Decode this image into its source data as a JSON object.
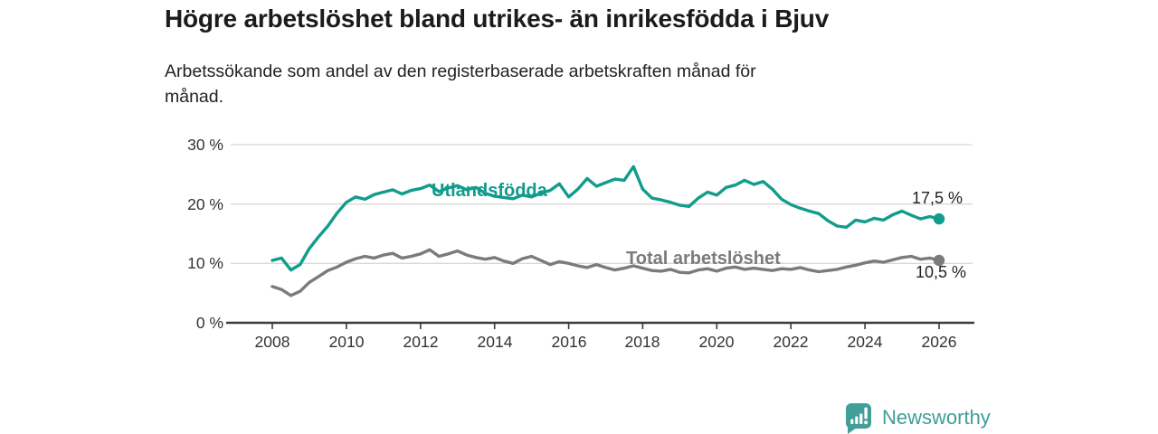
{
  "chart_data": {
    "type": "line",
    "title": "Högre arbetslöshet bland utrikes- än inrikesfödda i Bjuv",
    "subtitle_lines": [
      "Arbetssökande som andel av den registerbaserade arbetskraften månad för",
      "månad."
    ],
    "subtitle_full": "Arbetssökande som andel av den registerbaserade arbetskraften månad för månad.",
    "x_axis": {
      "ticks": [
        2008,
        2010,
        2012,
        2014,
        2016,
        2018,
        2020,
        2022,
        2024,
        2026
      ],
      "tick_labels": [
        "2008",
        "2010",
        "2012",
        "2014",
        "2016",
        "2018",
        "2020",
        "2022",
        "2024",
        "2026"
      ],
      "range": [
        2007.7,
        2026.9
      ]
    },
    "y_axis": {
      "ticks": [
        0,
        10,
        20,
        30
      ],
      "tick_labels": [
        "0 %",
        "10 %",
        "20 %",
        "30 %"
      ],
      "range": [
        0,
        30
      ],
      "unit": "%",
      "grid": true
    },
    "legend_position": "inline-labels",
    "style": {
      "grid_color": "#d8d8d8",
      "axis_color": "#3b3b3b",
      "background": "#ffffff"
    },
    "series": [
      {
        "id": "utlandsfodda",
        "name": "Utlandsfödda",
        "color": "#129c8c",
        "start_year": 2008,
        "interval_years": 0.25,
        "end_value": 17.5,
        "end_label": "17,5 %",
        "values": [
          10.5,
          10.9,
          8.9,
          9.8,
          12.5,
          14.5,
          16.3,
          18.5,
          20.3,
          21.2,
          20.8,
          21.6,
          22.0,
          22.4,
          21.7,
          22.3,
          22.6,
          23.2,
          22.1,
          22.7,
          23.1,
          22.4,
          22.8,
          21.8,
          21.3,
          21.1,
          20.9,
          21.5,
          21.2,
          21.8,
          22.3,
          23.4,
          21.2,
          22.5,
          24.3,
          23.0,
          23.6,
          24.2,
          24.0,
          26.3,
          22.5,
          21.0,
          20.7,
          20.3,
          19.8,
          19.6,
          21.0,
          22.0,
          21.5,
          22.8,
          23.2,
          24.0,
          23.3,
          23.8,
          22.5,
          20.8,
          19.9,
          19.3,
          18.8,
          18.4,
          17.2,
          16.3,
          16.1,
          17.3,
          17.0,
          17.6,
          17.3,
          18.2,
          18.8,
          18.1,
          17.5,
          17.9,
          17.5
        ]
      },
      {
        "id": "total",
        "name": "Total arbetslöshet",
        "color": "#7b7b7b",
        "start_year": 2008,
        "interval_years": 0.25,
        "end_value": 10.5,
        "end_label": "10,5 %",
        "values": [
          6.1,
          5.6,
          4.6,
          5.3,
          6.8,
          7.8,
          8.8,
          9.4,
          10.2,
          10.8,
          11.2,
          10.9,
          11.4,
          11.7,
          10.9,
          11.2,
          11.6,
          12.3,
          11.2,
          11.6,
          12.1,
          11.4,
          11.0,
          10.7,
          11.0,
          10.4,
          10.0,
          10.8,
          11.2,
          10.5,
          9.8,
          10.3,
          10.0,
          9.6,
          9.3,
          9.8,
          9.3,
          8.9,
          9.2,
          9.6,
          9.2,
          8.8,
          8.7,
          9.0,
          8.5,
          8.4,
          8.9,
          9.1,
          8.7,
          9.2,
          9.4,
          9.0,
          9.2,
          9.0,
          8.8,
          9.1,
          9.0,
          9.3,
          8.9,
          8.6,
          8.8,
          9.0,
          9.4,
          9.7,
          10.1,
          10.4,
          10.2,
          10.6,
          11.0,
          11.2,
          10.7,
          10.9,
          10.5
        ]
      }
    ]
  },
  "footer": {
    "brand": "Newsworthy",
    "brand_color": "#3f9e97",
    "icon_color": "#429e98"
  }
}
